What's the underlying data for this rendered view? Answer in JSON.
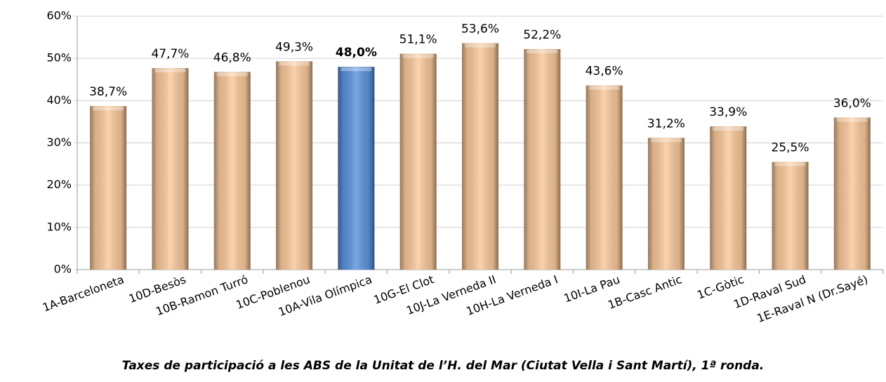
{
  "chart_data": {
    "type": "bar",
    "title": "Taxes de participació a les ABS de la Unitat de l’H. del Mar (Ciutat Vella i Sant Martí), 1ª ronda.",
    "categories": [
      "1A-Barceloneta",
      "10D-Besòs",
      "10B-Ramon Turró",
      "10C-Poblenou",
      "10A-Vila Olímpica",
      "10G-El Clot",
      "10J-La Verneda II",
      "10H-La Verneda I",
      "10I-La Pau",
      "1B-Casc Antic",
      "1C-Gòtic",
      "1D-Raval Sud",
      "1E-Raval N (Dr.Sayé)"
    ],
    "values": [
      38.7,
      47.7,
      46.8,
      49.3,
      48.0,
      51.1,
      53.6,
      52.2,
      43.6,
      31.2,
      33.9,
      25.5,
      36.0
    ],
    "value_labels": [
      "38,7%",
      "47,7%",
      "46,8%",
      "49,3%",
      "48,0%",
      "51,1%",
      "53,6%",
      "52,2%",
      "43,6%",
      "31,2%",
      "33,9%",
      "25,5%",
      "36,0%"
    ],
    "color": "#f9c89b",
    "colors": [
      "#f9c89b",
      "#f9c89b",
      "#f9c89b",
      "#f9c89b",
      "#5b93dd",
      "#f9c89b",
      "#f9c89b",
      "#f9c89b",
      "#f9c89b",
      "#f9c89b",
      "#f9c89b",
      "#f9c89b",
      "#f9c89b"
    ],
    "ylim": [
      0,
      60
    ],
    "yticks": [
      {
        "value": 0,
        "label": "0%"
      },
      {
        "value": 10,
        "label": "10%"
      },
      {
        "value": 20,
        "label": "20%"
      },
      {
        "value": 30,
        "label": "30%"
      },
      {
        "value": 40,
        "label": "40%"
      },
      {
        "value": 50,
        "label": "50%"
      },
      {
        "value": 60,
        "label": "60%"
      }
    ],
    "grid": true
  }
}
